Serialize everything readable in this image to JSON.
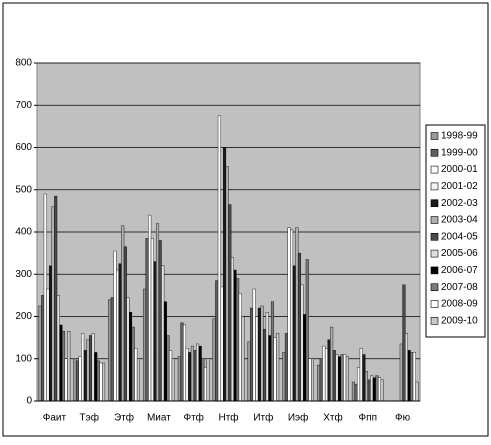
{
  "chart_data": {
    "type": "bar",
    "categories": [
      "Фаит",
      "Тэф",
      "Этф",
      "Миат",
      "Фтф",
      "Нтф",
      "Итф",
      "Иэф",
      "Хтф",
      "Фпп",
      "Фю"
    ],
    "series": [
      {
        "name": "1998-99",
        "color": "#9a9a9a",
        "values": [
          225,
          100,
          240,
          265,
          105,
          195,
          140,
          115,
          85,
          45,
          null
        ]
      },
      {
        "name": "1999-00",
        "color": "#606060",
        "values": [
          250,
          95,
          245,
          385,
          185,
          285,
          220,
          160,
          100,
          40,
          null
        ]
      },
      {
        "name": "2000-01",
        "color": "#ffffff",
        "values": [
          490,
          105,
          355,
          440,
          180,
          675,
          265,
          410,
          130,
          80,
          null
        ]
      },
      {
        "name": "2001-02",
        "color": "#f4f4f4",
        "values": [
          265,
          160,
          310,
          385,
          125,
          270,
          200,
          405,
          125,
          125,
          null
        ]
      },
      {
        "name": "2002-03",
        "color": "#1a1a1a",
        "values": [
          320,
          120,
          325,
          330,
          115,
          600,
          220,
          320,
          145,
          110,
          null
        ]
      },
      {
        "name": "2003-04",
        "color": "#b0b0b0",
        "values": [
          460,
          145,
          415,
          420,
          130,
          555,
          225,
          410,
          175,
          70,
          135
        ]
      },
      {
        "name": "2004-05",
        "color": "#4a4a4a",
        "values": [
          485,
          155,
          365,
          380,
          120,
          465,
          170,
          350,
          120,
          50,
          275
        ]
      },
      {
        "name": "2005-06",
        "color": "#e0e0e0",
        "values": [
          250,
          160,
          245,
          320,
          135,
          340,
          210,
          275,
          110,
          60,
          160
        ]
      },
      {
        "name": "2006-07",
        "color": "#000000",
        "values": [
          180,
          115,
          210,
          235,
          130,
          310,
          155,
          205,
          105,
          55,
          120
        ]
      },
      {
        "name": "2007-08",
        "color": "#7a7a7a",
        "values": [
          165,
          95,
          175,
          155,
          100,
          290,
          235,
          335,
          110,
          60,
          115
        ]
      },
      {
        "name": "2008-09",
        "color": "#ffffff",
        "values": [
          100,
          90,
          125,
          120,
          80,
          255,
          150,
          100,
          110,
          55,
          115
        ]
      },
      {
        "name": "2009-10",
        "color": "#c8c8c8",
        "values": [
          165,
          90,
          100,
          100,
          100,
          200,
          160,
          100,
          105,
          50,
          45
        ]
      }
    ],
    "ylim": [
      0,
      800
    ],
    "yticks": [
      0,
      100,
      200,
      300,
      400,
      500,
      600,
      700,
      800
    ],
    "grid": true,
    "legend": "right"
  }
}
